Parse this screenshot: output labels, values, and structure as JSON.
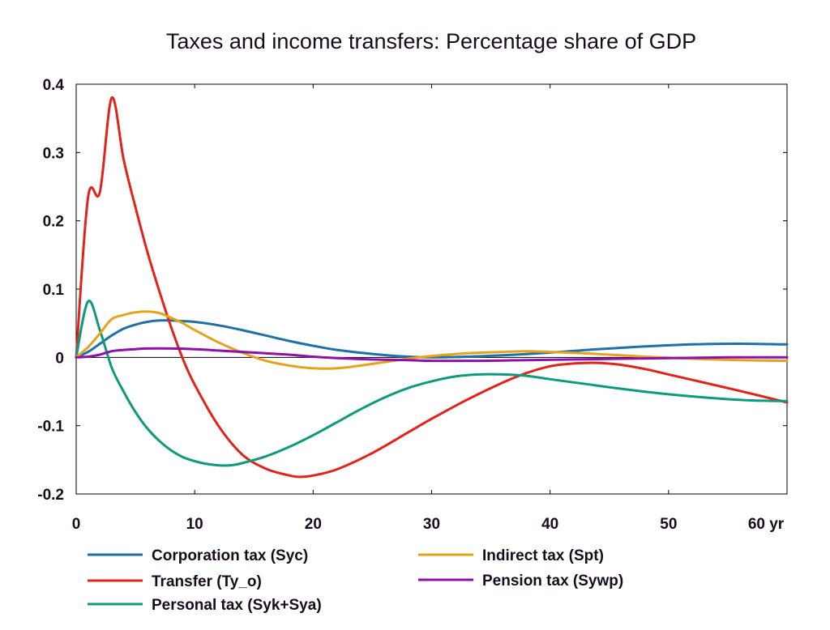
{
  "chart_data": {
    "type": "line",
    "title": "Taxes and income transfers: Percentage share of GDP",
    "xlabel": "",
    "ylabel": "",
    "x_unit_label": "yr",
    "xlim": [
      0,
      60
    ],
    "ylim": [
      -0.2,
      0.4
    ],
    "x_ticks": [
      0,
      10,
      20,
      30,
      40,
      50,
      60
    ],
    "x_tick_labels": [
      "0",
      "10",
      "20",
      "30",
      "40",
      "50",
      "60 yr"
    ],
    "y_ticks": [
      -0.2,
      -0.1,
      0,
      0.1,
      0.2,
      0.3,
      0.4
    ],
    "y_tick_labels": [
      "-0.2",
      "-0.1",
      "0",
      "0.1",
      "0.2",
      "0.3",
      "0.4"
    ],
    "grid": false,
    "zero_line": true,
    "legend_position": "bottom",
    "series": [
      {
        "name": "Corporation tax (Syc)",
        "color": "#1f6fa8",
        "points": [
          [
            0,
            0
          ],
          [
            1,
            0.008
          ],
          [
            2,
            0.02
          ],
          [
            3,
            0.032
          ],
          [
            4,
            0.042
          ],
          [
            5,
            0.048
          ],
          [
            6,
            0.052
          ],
          [
            7,
            0.054
          ],
          [
            8,
            0.054
          ],
          [
            9,
            0.053
          ],
          [
            10,
            0.052
          ],
          [
            12,
            0.047
          ],
          [
            14,
            0.04
          ],
          [
            16,
            0.032
          ],
          [
            18,
            0.024
          ],
          [
            20,
            0.017
          ],
          [
            22,
            0.011
          ],
          [
            25,
            0.005
          ],
          [
            28,
            0.001
          ],
          [
            30,
            0
          ],
          [
            33,
            0.001
          ],
          [
            36,
            0.003
          ],
          [
            40,
            0.007
          ],
          [
            44,
            0.012
          ],
          [
            48,
            0.016
          ],
          [
            52,
            0.019
          ],
          [
            56,
            0.02
          ],
          [
            60,
            0.019
          ]
        ]
      },
      {
        "name": "Transfer (Ty_o)",
        "color": "#e2231a",
        "points": [
          [
            0,
            0
          ],
          [
            1,
            0.234
          ],
          [
            2,
            0.242
          ],
          [
            3,
            0.38
          ],
          [
            4,
            0.29
          ],
          [
            5,
            0.22
          ],
          [
            6,
            0.155
          ],
          [
            7,
            0.098
          ],
          [
            8,
            0.045
          ],
          [
            9,
            -0.002
          ],
          [
            10,
            -0.04
          ],
          [
            12,
            -0.1
          ],
          [
            14,
            -0.142
          ],
          [
            16,
            -0.163
          ],
          [
            18,
            -0.173
          ],
          [
            19,
            -0.175
          ],
          [
            20,
            -0.173
          ],
          [
            22,
            -0.164
          ],
          [
            25,
            -0.14
          ],
          [
            28,
            -0.11
          ],
          [
            30,
            -0.09
          ],
          [
            33,
            -0.062
          ],
          [
            36,
            -0.037
          ],
          [
            38,
            -0.023
          ],
          [
            40,
            -0.013
          ],
          [
            42,
            -0.009
          ],
          [
            44,
            -0.008
          ],
          [
            46,
            -0.011
          ],
          [
            48,
            -0.017
          ],
          [
            50,
            -0.025
          ],
          [
            53,
            -0.037
          ],
          [
            56,
            -0.049
          ],
          [
            60,
            -0.066
          ]
        ]
      },
      {
        "name": "Personal tax (Syk+Sya)",
        "color": "#0f9a7d",
        "points": [
          [
            0,
            0
          ],
          [
            1,
            0.082
          ],
          [
            2,
            0.04
          ],
          [
            3,
            -0.015
          ],
          [
            4,
            -0.05
          ],
          [
            5,
            -0.08
          ],
          [
            6,
            -0.104
          ],
          [
            7,
            -0.122
          ],
          [
            8,
            -0.136
          ],
          [
            9,
            -0.146
          ],
          [
            10,
            -0.152
          ],
          [
            11,
            -0.156
          ],
          [
            12,
            -0.158
          ],
          [
            13,
            -0.158
          ],
          [
            14,
            -0.155
          ],
          [
            16,
            -0.145
          ],
          [
            18,
            -0.131
          ],
          [
            20,
            -0.114
          ],
          [
            22,
            -0.095
          ],
          [
            24,
            -0.076
          ],
          [
            26,
            -0.059
          ],
          [
            28,
            -0.045
          ],
          [
            30,
            -0.035
          ],
          [
            32,
            -0.028
          ],
          [
            34,
            -0.025
          ],
          [
            36,
            -0.025
          ],
          [
            38,
            -0.027
          ],
          [
            40,
            -0.032
          ],
          [
            43,
            -0.039
          ],
          [
            46,
            -0.046
          ],
          [
            50,
            -0.054
          ],
          [
            54,
            -0.06
          ],
          [
            57,
            -0.063
          ],
          [
            60,
            -0.064
          ]
        ]
      },
      {
        "name": "Indirect tax (Spt)",
        "color": "#e6a21a",
        "points": [
          [
            0,
            0
          ],
          [
            1,
            0.015
          ],
          [
            2,
            0.035
          ],
          [
            3,
            0.056
          ],
          [
            4,
            0.062
          ],
          [
            5,
            0.066
          ],
          [
            6,
            0.067
          ],
          [
            7,
            0.065
          ],
          [
            8,
            0.058
          ],
          [
            9,
            0.05
          ],
          [
            10,
            0.04
          ],
          [
            12,
            0.022
          ],
          [
            14,
            0.007
          ],
          [
            16,
            -0.005
          ],
          [
            18,
            -0.012
          ],
          [
            20,
            -0.016
          ],
          [
            22,
            -0.016
          ],
          [
            24,
            -0.012
          ],
          [
            26,
            -0.007
          ],
          [
            28,
            -0.002
          ],
          [
            30,
            0.002
          ],
          [
            33,
            0.006
          ],
          [
            36,
            0.008
          ],
          [
            38,
            0.009
          ],
          [
            40,
            0.008
          ],
          [
            44,
            0.005
          ],
          [
            48,
            0.001
          ],
          [
            52,
            -0.002
          ],
          [
            56,
            -0.004
          ],
          [
            60,
            -0.005
          ]
        ]
      },
      {
        "name": "Pension tax (Sywp)",
        "color": "#8e10a8",
        "points": [
          [
            0,
            0
          ],
          [
            1,
            0.001
          ],
          [
            2,
            0.004
          ],
          [
            3,
            0.009
          ],
          [
            4,
            0.011
          ],
          [
            5,
            0.012
          ],
          [
            6,
            0.013
          ],
          [
            8,
            0.013
          ],
          [
            10,
            0.012
          ],
          [
            12,
            0.01
          ],
          [
            14,
            0.008
          ],
          [
            16,
            0.006
          ],
          [
            18,
            0.004
          ],
          [
            20,
            0.001
          ],
          [
            22,
            -0.001
          ],
          [
            25,
            -0.003
          ],
          [
            28,
            -0.004
          ],
          [
            30,
            -0.005
          ],
          [
            34,
            -0.005
          ],
          [
            38,
            -0.004
          ],
          [
            42,
            -0.003
          ],
          [
            46,
            -0.002
          ],
          [
            50,
            -0.001
          ],
          [
            55,
            0
          ],
          [
            60,
            0
          ]
        ]
      }
    ]
  }
}
